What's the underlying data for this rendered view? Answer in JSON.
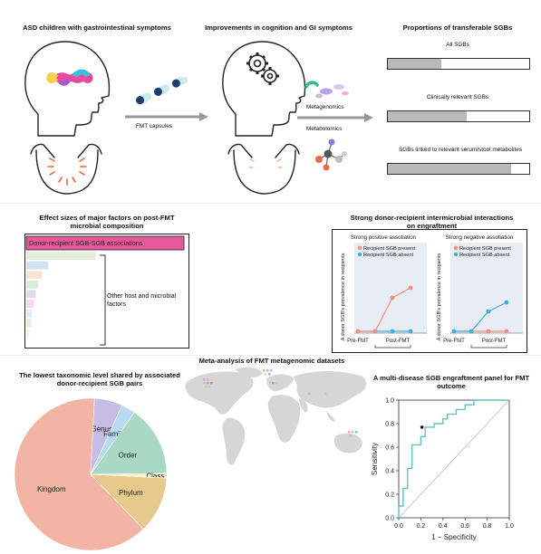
{
  "top": {
    "title_left": "ASD children with gastrointestinal symptoms",
    "title_mid": "Improvements in cognition and GI symptoms",
    "title_right": "Proportions of transferable SGBs",
    "fmt_label": "FMT capsules",
    "metagenomics": "Metagenomics",
    "metabolomics": "Metabolomics",
    "bars": [
      {
        "label": "All SGBs",
        "fraction": 0.38
      },
      {
        "label": "Clinically relevant SGBs",
        "fraction": 0.56
      },
      {
        "label": "SGBs linked to relevant serum/stool metabolites",
        "fraction": 0.87
      }
    ]
  },
  "effect_sizes": {
    "title": "Effect sizes of major factors on post-FMT microbial composition",
    "top_label": "Donor-recipient SGB-SGB associations",
    "other_label": "Other host and microbial factors",
    "bars": [
      {
        "value": 1.0,
        "color": "#e5589c"
      },
      {
        "value": 0.44,
        "color": "#e6ecd8"
      },
      {
        "value": 0.14,
        "color": "#cfe2f3"
      },
      {
        "value": 0.1,
        "color": "#fbe3d3"
      },
      {
        "value": 0.075,
        "color": "#d9ecd9"
      },
      {
        "value": 0.06,
        "color": "#dcdcec"
      },
      {
        "value": 0.05,
        "color": "#f4dde8"
      },
      {
        "value": 0.035,
        "color": "#e1edf5"
      },
      {
        "value": 0.03,
        "color": "#fbe6d6"
      },
      {
        "value": 0.02,
        "color": "#eef6e6"
      }
    ]
  },
  "interactions": {
    "title": "Strong donor-recipient intermicrobial interactions on engraftment",
    "positive_title": "Strong positive assotiation",
    "negative_title": "Strong negative assotiation",
    "legend_present": "Recipient SGB present",
    "legend_absent": "Recipient SGB absent",
    "ylabel": "A donor SGB's prevalence in recipients",
    "x_pre": "Pre-FMT",
    "x_post": "Post-FMT",
    "color_present": "#f08f80",
    "color_absent": "#3db0dc"
  },
  "metaanalysis": {
    "title": "Meta-analysis of FMT metagenomic datasets"
  },
  "pie": {
    "title": "The lowest taxonomic level shared by associated donor-recipient SGB pairs",
    "slices": [
      {
        "label": "Genus",
        "value": 6,
        "color": "#c5bde3"
      },
      {
        "label": "Family",
        "value": 3,
        "color": "#b9dbf2"
      },
      {
        "label": "Order",
        "value": 15,
        "color": "#a9d8c4"
      },
      {
        "label": "Class",
        "value": 1,
        "color": "#f4f1c6"
      },
      {
        "label": "Phylum",
        "value": 12,
        "color": "#e6c98d"
      },
      {
        "label": "Kingdom",
        "value": 63,
        "color": "#f2b4a5"
      }
    ]
  },
  "roc": {
    "title": "A multi-disease SGB engraftment panel for FMT outcome",
    "xlabel": "1 − Specificity",
    "ylabel": "Sensitivity",
    "ticks": [
      "0.0",
      "0.2",
      "0.4",
      "0.6",
      "0.8",
      "1.0"
    ],
    "line_color": "#5fc3c0"
  },
  "chart_data": {
    "type": "line",
    "title": "A multi-disease SGB engraftment panel for FMT outcome",
    "xlabel": "1 − Specificity",
    "ylabel": "Sensitivity",
    "xlim": [
      0,
      1
    ],
    "ylim": [
      0,
      1
    ],
    "x": [
      0,
      0,
      0.04,
      0.04,
      0.08,
      0.08,
      0.12,
      0.12,
      0.2,
      0.2,
      0.24,
      0.24,
      0.32,
      0.32,
      0.4,
      0.4,
      0.44,
      0.44,
      0.52,
      0.52,
      0.6,
      0.6,
      0.68,
      0.68,
      1.0
    ],
    "series": [
      {
        "values": [
          0,
          0.1,
          0.1,
          0.25,
          0.25,
          0.42,
          0.42,
          0.62,
          0.62,
          0.69,
          0.69,
          0.77,
          0.77,
          0.8,
          0.8,
          0.84,
          0.84,
          0.88,
          0.88,
          0.92,
          0.92,
          0.96,
          0.96,
          1.0,
          1.0
        ]
      }
    ],
    "highlight_point": [
      0.21,
      0.77
    ]
  }
}
